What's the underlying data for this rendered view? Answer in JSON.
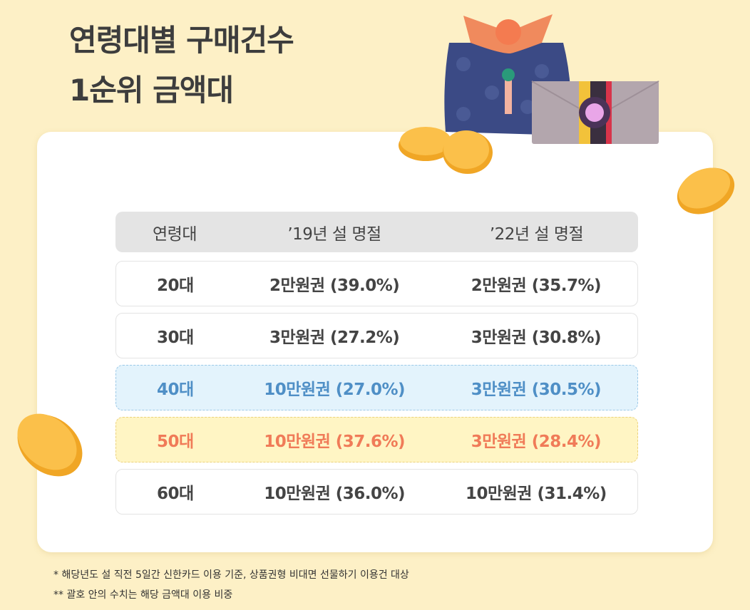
{
  "header": {
    "title": [
      "연령대별 구매건수",
      "1순위 금액대"
    ]
  },
  "table": {
    "columns": [
      "연령대",
      "’19년 설 명절",
      "’22년 설 명절"
    ],
    "rows": [
      [
        "20대",
        "2만원권 (39.0%)",
        "2만원권 (35.7%)"
      ],
      [
        "30대",
        "3만원권 (27.2%)",
        "3만원권 (30.8%)"
      ],
      [
        "40대",
        "10만원권 (27.0%)",
        "3만원권 (30.5%)"
      ],
      [
        "50대",
        "10만원권 (37.6%)",
        "3만원권 (28.4%)"
      ],
      [
        "60대",
        "10만원권 (36.0%)",
        "10만원권 (31.4%)"
      ]
    ]
  },
  "footnotes": [
    "* 해당년도 설 직전 5일간 신한카드 이용 기준, 상품권형 비대면 선물하기 이용건 대상",
    "** 괄호 안의 수치는 해당 금액대 이용 비중"
  ]
}
